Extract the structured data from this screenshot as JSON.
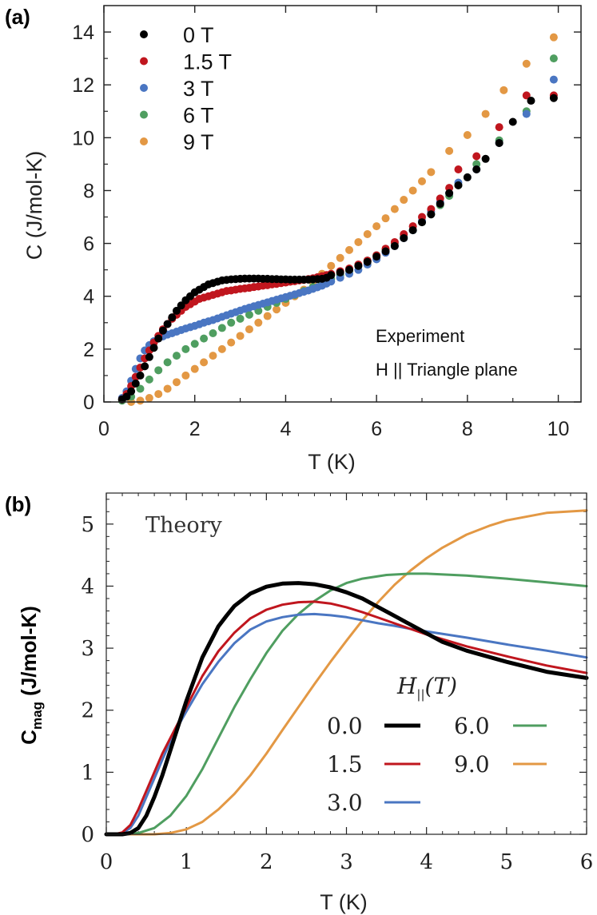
{
  "colors": {
    "0": "#000000",
    "1.5": "#c0161e",
    "3": "#4a76c2",
    "6": "#4f9e60",
    "9": "#e39844"
  },
  "chart_data": [
    {
      "panel_label": "(a)",
      "type": "scatter",
      "xlabel": "T (K)",
      "ylabel": "C (J/mol-K)",
      "xlim": [
        0,
        10.5
      ],
      "ylim": [
        0,
        15
      ],
      "xticks": [
        "0",
        "2",
        "4",
        "6",
        "8",
        "10"
      ],
      "yticks": [
        "0",
        "2",
        "4",
        "6",
        "8",
        "10",
        "12",
        "14"
      ],
      "legend_position": "top-left",
      "annotation_line1": "Experiment",
      "annotation_line2": "H || Triangle plane",
      "series": [
        {
          "name": "0 T",
          "key": "0",
          "x": [
            0.4,
            0.5,
            0.6,
            0.7,
            0.8,
            0.9,
            1.0,
            1.1,
            1.2,
            1.3,
            1.4,
            1.5,
            1.6,
            1.7,
            1.8,
            1.9,
            2.0,
            2.1,
            2.2,
            2.3,
            2.4,
            2.5,
            2.6,
            2.7,
            2.8,
            2.9,
            3.0,
            3.1,
            3.2,
            3.3,
            3.4,
            3.5,
            3.6,
            3.7,
            3.8,
            3.9,
            4.0,
            4.1,
            4.2,
            4.3,
            4.4,
            4.5,
            4.6,
            4.7,
            4.8,
            4.9,
            5.0,
            5.2,
            5.4,
            5.6,
            5.8,
            6.0,
            6.2,
            6.4,
            6.6,
            6.8,
            7.0,
            7.2,
            7.4,
            7.6,
            7.8,
            8.0,
            8.2,
            8.4,
            8.7,
            9.0,
            9.4,
            9.9
          ],
          "y": [
            0.1,
            0.2,
            0.4,
            0.7,
            1.0,
            1.35,
            1.7,
            2.05,
            2.4,
            2.7,
            2.95,
            3.2,
            3.45,
            3.65,
            3.85,
            4.0,
            4.15,
            4.25,
            4.35,
            4.45,
            4.5,
            4.55,
            4.6,
            4.62,
            4.64,
            4.65,
            4.66,
            4.67,
            4.67,
            4.67,
            4.67,
            4.66,
            4.66,
            4.65,
            4.65,
            4.64,
            4.64,
            4.63,
            4.63,
            4.63,
            4.63,
            4.63,
            4.64,
            4.65,
            4.66,
            4.7,
            4.8,
            4.9,
            5.0,
            5.15,
            5.3,
            5.5,
            5.7,
            5.9,
            6.2,
            6.5,
            6.8,
            7.1,
            7.5,
            7.9,
            8.2,
            8.5,
            8.8,
            9.2,
            9.8,
            10.6,
            11.4,
            11.5
          ]
        },
        {
          "name": "1.5 T",
          "key": "1.5",
          "x": [
            0.4,
            0.5,
            0.6,
            0.7,
            0.8,
            0.9,
            1.0,
            1.1,
            1.2,
            1.3,
            1.4,
            1.5,
            1.6,
            1.7,
            1.8,
            1.9,
            2.0,
            2.1,
            2.2,
            2.3,
            2.4,
            2.5,
            2.6,
            2.7,
            2.8,
            2.9,
            3.0,
            3.1,
            3.2,
            3.3,
            3.4,
            3.5,
            3.6,
            3.7,
            3.8,
            3.9,
            4.0,
            4.1,
            4.2,
            4.3,
            4.4,
            4.5,
            4.6,
            4.7,
            4.8,
            4.9,
            5.0,
            5.2,
            5.4,
            5.6,
            5.8,
            6.0,
            6.2,
            6.4,
            6.6,
            6.8,
            7.0,
            7.2,
            7.4,
            7.6,
            7.8,
            8.2,
            8.7,
            9.3,
            9.9
          ],
          "y": [
            0.1,
            0.3,
            0.6,
            0.95,
            1.3,
            1.65,
            1.95,
            2.25,
            2.5,
            2.75,
            2.95,
            3.15,
            3.3,
            3.45,
            3.6,
            3.7,
            3.8,
            3.9,
            3.95,
            4.0,
            4.05,
            4.1,
            4.15,
            4.2,
            4.22,
            4.25,
            4.28,
            4.3,
            4.32,
            4.35,
            4.37,
            4.4,
            4.42,
            4.45,
            4.47,
            4.5,
            4.52,
            4.55,
            4.57,
            4.6,
            4.62,
            4.65,
            4.68,
            4.72,
            4.76,
            4.8,
            4.85,
            4.95,
            5.05,
            5.2,
            5.35,
            5.55,
            5.8,
            6.05,
            6.35,
            6.65,
            7.0,
            7.3,
            7.7,
            8.1,
            8.8,
            9.3,
            10.4,
            11.6,
            11.6
          ]
        },
        {
          "name": "3 T",
          "key": "3",
          "x": [
            0.4,
            0.5,
            0.6,
            0.7,
            0.8,
            0.9,
            1.0,
            1.1,
            1.2,
            1.3,
            1.4,
            1.5,
            1.6,
            1.7,
            1.8,
            1.9,
            2.0,
            2.1,
            2.2,
            2.3,
            2.4,
            2.5,
            2.6,
            2.7,
            2.8,
            2.9,
            3.0,
            3.1,
            3.2,
            3.3,
            3.4,
            3.5,
            3.6,
            3.7,
            3.8,
            3.9,
            4.0,
            4.1,
            4.2,
            4.3,
            4.4,
            4.5,
            4.6,
            4.7,
            4.8,
            4.9,
            5.0,
            5.2,
            5.4,
            5.6,
            5.8,
            6.0,
            6.2,
            6.4,
            6.6,
            6.8,
            7.0,
            7.2,
            7.4,
            7.6,
            7.8,
            8.2,
            8.7,
            9.3,
            9.9
          ],
          "y": [
            0.15,
            0.4,
            0.8,
            1.25,
            1.65,
            1.95,
            2.15,
            2.3,
            2.4,
            2.48,
            2.55,
            2.6,
            2.66,
            2.72,
            2.78,
            2.83,
            2.88,
            2.94,
            3.0,
            3.05,
            3.1,
            3.16,
            3.22,
            3.28,
            3.34,
            3.4,
            3.46,
            3.52,
            3.57,
            3.62,
            3.67,
            3.72,
            3.77,
            3.82,
            3.87,
            3.92,
            3.97,
            4.02,
            4.07,
            4.12,
            4.17,
            4.22,
            4.28,
            4.34,
            4.4,
            4.48,
            4.56,
            4.7,
            4.85,
            5.0,
            5.2,
            5.4,
            5.65,
            5.9,
            6.2,
            6.5,
            6.85,
            7.2,
            7.55,
            7.9,
            8.3,
            8.8,
            9.8,
            10.9,
            12.2
          ]
        },
        {
          "name": "6 T",
          "key": "6",
          "x": [
            0.4,
            0.6,
            0.8,
            1.0,
            1.2,
            1.4,
            1.6,
            1.8,
            2.0,
            2.2,
            2.4,
            2.6,
            2.8,
            3.0,
            3.2,
            3.4,
            3.6,
            3.8,
            4.0,
            4.2,
            4.4,
            4.6,
            4.8,
            5.0,
            5.2,
            5.4,
            5.6,
            5.8,
            6.0,
            6.2,
            6.4,
            6.6,
            6.8,
            7.0,
            7.2,
            7.4,
            7.6,
            7.8,
            8.2,
            8.7,
            9.3,
            9.9
          ],
          "y": [
            0.05,
            0.2,
            0.5,
            0.85,
            1.2,
            1.5,
            1.75,
            2.0,
            2.2,
            2.4,
            2.6,
            2.8,
            3.0,
            3.15,
            3.3,
            3.45,
            3.6,
            3.75,
            3.9,
            4.05,
            4.2,
            4.35,
            4.5,
            4.65,
            4.8,
            4.95,
            5.15,
            5.35,
            5.55,
            5.75,
            6.0,
            6.25,
            6.5,
            6.8,
            7.1,
            7.45,
            7.8,
            8.2,
            9.0,
            9.9,
            11.0,
            13.0
          ]
        },
        {
          "name": "9 T",
          "key": "9",
          "x": [
            0.6,
            0.8,
            1.0,
            1.2,
            1.4,
            1.6,
            1.8,
            2.0,
            2.2,
            2.4,
            2.6,
            2.8,
            3.0,
            3.2,
            3.4,
            3.6,
            3.8,
            4.0,
            4.2,
            4.4,
            4.6,
            4.8,
            5.0,
            5.2,
            5.4,
            5.6,
            5.8,
            6.0,
            6.2,
            6.4,
            6.6,
            6.8,
            7.0,
            7.2,
            7.6,
            8.0,
            8.4,
            8.8,
            9.3,
            9.9
          ],
          "y": [
            0.0,
            0.05,
            0.15,
            0.3,
            0.5,
            0.75,
            1.0,
            1.25,
            1.5,
            1.75,
            2.0,
            2.25,
            2.5,
            2.75,
            3.0,
            3.25,
            3.5,
            3.75,
            4.0,
            4.25,
            4.55,
            4.85,
            5.15,
            5.45,
            5.75,
            6.05,
            6.35,
            6.65,
            6.95,
            7.3,
            7.65,
            8.0,
            8.35,
            8.7,
            9.5,
            10.1,
            10.9,
            11.8,
            12.8,
            13.8
          ]
        }
      ]
    },
    {
      "panel_label": "(b)",
      "type": "line",
      "xlabel": "T (K)",
      "ylabel_main": "C",
      "ylabel_sub": "mag",
      "ylabel_units": " (J/mol-K)",
      "xlim": [
        0,
        6
      ],
      "ylim": [
        0,
        5.5
      ],
      "xticks": [
        "0",
        "1",
        "2",
        "3",
        "4",
        "5",
        "6"
      ],
      "yticks": [
        "0",
        "1",
        "2",
        "3",
        "4",
        "5"
      ],
      "annotation": "Theory",
      "legend_title_main": "H",
      "legend_title_sub": "||",
      "legend_title_paren": "(T)",
      "legend_position": "bottom-right",
      "series": [
        {
          "name": "0.0",
          "key": "0",
          "width": 5,
          "x": [
            0.1,
            0.2,
            0.3,
            0.4,
            0.5,
            0.6,
            0.7,
            0.8,
            0.9,
            1.0,
            1.1,
            1.2,
            1.3,
            1.4,
            1.5,
            1.6,
            1.8,
            2.0,
            2.2,
            2.4,
            2.6,
            2.8,
            3.0,
            3.2,
            3.4,
            3.6,
            3.8,
            4.0,
            4.2,
            4.5,
            5.0,
            5.5,
            6.0
          ],
          "y": [
            0,
            0,
            0.02,
            0.1,
            0.3,
            0.6,
            0.95,
            1.35,
            1.75,
            2.15,
            2.5,
            2.85,
            3.1,
            3.35,
            3.52,
            3.68,
            3.88,
            3.99,
            4.04,
            4.05,
            4.03,
            3.98,
            3.9,
            3.8,
            3.66,
            3.52,
            3.38,
            3.24,
            3.1,
            2.96,
            2.78,
            2.62,
            2.52
          ]
        },
        {
          "name": "1.5",
          "key": "1.5",
          "width": 3,
          "x": [
            0.1,
            0.2,
            0.3,
            0.4,
            0.5,
            0.6,
            0.7,
            0.8,
            0.9,
            1.0,
            1.2,
            1.4,
            1.6,
            1.8,
            2.0,
            2.2,
            2.4,
            2.6,
            2.8,
            3.0,
            3.2,
            3.4,
            3.6,
            3.8,
            4.0,
            4.5,
            5.0,
            5.5,
            6.0
          ],
          "y": [
            0,
            0.03,
            0.15,
            0.4,
            0.7,
            1.0,
            1.3,
            1.55,
            1.8,
            2.05,
            2.55,
            2.95,
            3.25,
            3.48,
            3.62,
            3.7,
            3.74,
            3.75,
            3.72,
            3.66,
            3.58,
            3.49,
            3.4,
            3.31,
            3.22,
            3.03,
            2.87,
            2.72,
            2.6
          ]
        },
        {
          "name": "3.0",
          "key": "3",
          "width": 3,
          "x": [
            0.1,
            0.2,
            0.3,
            0.4,
            0.5,
            0.6,
            0.7,
            0.8,
            0.9,
            1.0,
            1.2,
            1.4,
            1.6,
            1.8,
            2.0,
            2.2,
            2.4,
            2.6,
            2.8,
            3.0,
            3.2,
            3.4,
            3.6,
            3.8,
            4.0,
            4.5,
            5.0,
            5.5,
            6.0
          ],
          "y": [
            0,
            0.02,
            0.1,
            0.3,
            0.6,
            0.9,
            1.2,
            1.5,
            1.75,
            1.98,
            2.42,
            2.78,
            3.08,
            3.3,
            3.43,
            3.5,
            3.54,
            3.55,
            3.53,
            3.5,
            3.45,
            3.4,
            3.36,
            3.31,
            3.27,
            3.17,
            3.06,
            2.96,
            2.85
          ]
        },
        {
          "name": "6.0",
          "key": "6",
          "width": 3,
          "x": [
            0.2,
            0.4,
            0.6,
            0.8,
            1.0,
            1.2,
            1.4,
            1.6,
            1.8,
            2.0,
            2.2,
            2.4,
            2.6,
            2.8,
            3.0,
            3.2,
            3.5,
            3.8,
            4.0,
            4.5,
            5.0,
            5.5,
            6.0
          ],
          "y": [
            0,
            0.02,
            0.1,
            0.3,
            0.62,
            1.05,
            1.55,
            2.05,
            2.5,
            2.92,
            3.28,
            3.55,
            3.76,
            3.93,
            4.05,
            4.12,
            4.18,
            4.2,
            4.2,
            4.17,
            4.12,
            4.06,
            4.0
          ]
        },
        {
          "name": "9.0",
          "key": "9",
          "width": 3,
          "x": [
            0.6,
            0.8,
            1.0,
            1.2,
            1.4,
            1.6,
            1.8,
            2.0,
            2.2,
            2.4,
            2.6,
            2.8,
            3.0,
            3.2,
            3.4,
            3.6,
            3.8,
            4.0,
            4.2,
            4.5,
            4.8,
            5.0,
            5.5,
            6.0
          ],
          "y": [
            0,
            0.02,
            0.08,
            0.2,
            0.4,
            0.65,
            0.95,
            1.3,
            1.68,
            2.05,
            2.42,
            2.78,
            3.12,
            3.45,
            3.75,
            4.02,
            4.25,
            4.45,
            4.62,
            4.83,
            4.98,
            5.06,
            5.18,
            5.22
          ]
        }
      ]
    }
  ]
}
